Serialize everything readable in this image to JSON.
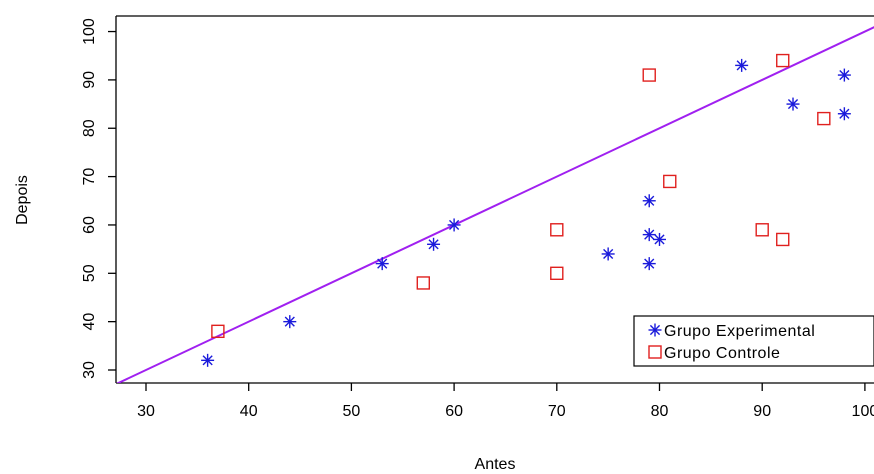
{
  "chart_data": {
    "type": "scatter",
    "title": "",
    "xlabel": "Antes",
    "ylabel": "Depois",
    "xlim": [
      27,
      102
    ],
    "ylim": [
      27,
      103
    ],
    "x_ticks": [
      30,
      40,
      50,
      60,
      70,
      80,
      90,
      100
    ],
    "y_ticks": [
      30,
      40,
      50,
      60,
      70,
      80,
      90,
      100
    ],
    "x_tick_labels": [
      "30",
      "40",
      "50",
      "60",
      "70",
      "80",
      "90",
      "100"
    ],
    "y_tick_labels": [
      "30",
      "40",
      "50",
      "60",
      "70",
      "80",
      "90",
      "100"
    ],
    "grid": false,
    "legend_position": "bottom-right",
    "series": [
      {
        "name": "Grupo Experimental",
        "marker": "asterisk",
        "color": "#1a1adb",
        "points": [
          {
            "x": 36,
            "y": 32
          },
          {
            "x": 44,
            "y": 40
          },
          {
            "x": 53,
            "y": 52
          },
          {
            "x": 58,
            "y": 56
          },
          {
            "x": 60,
            "y": 60
          },
          {
            "x": 75,
            "y": 54
          },
          {
            "x": 79,
            "y": 65
          },
          {
            "x": 79,
            "y": 58
          },
          {
            "x": 79,
            "y": 52
          },
          {
            "x": 80,
            "y": 57
          },
          {
            "x": 88,
            "y": 93
          },
          {
            "x": 93,
            "y": 85
          },
          {
            "x": 98,
            "y": 91
          },
          {
            "x": 98,
            "y": 83
          }
        ]
      },
      {
        "name": "Grupo Controle",
        "marker": "square",
        "color": "#e0201e",
        "points": [
          {
            "x": 37,
            "y": 38
          },
          {
            "x": 57,
            "y": 48
          },
          {
            "x": 70,
            "y": 59
          },
          {
            "x": 70,
            "y": 50
          },
          {
            "x": 79,
            "y": 91
          },
          {
            "x": 81,
            "y": 69
          },
          {
            "x": 90,
            "y": 59
          },
          {
            "x": 92,
            "y": 94
          },
          {
            "x": 92,
            "y": 57
          },
          {
            "x": 96,
            "y": 82
          }
        ]
      }
    ],
    "reference_line": {
      "type": "identity",
      "slope": 1,
      "intercept": 0,
      "color": "#a020f0"
    }
  }
}
